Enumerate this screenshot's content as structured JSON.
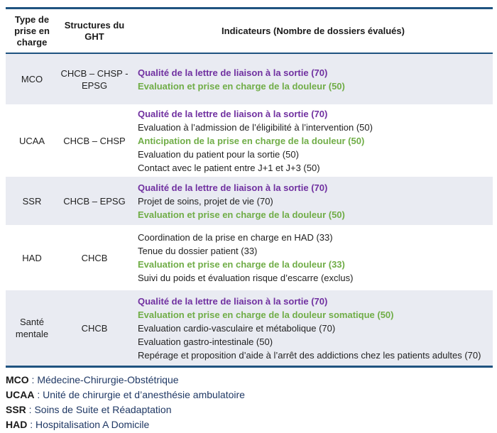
{
  "header": {
    "col_type": "Type de prise en charge",
    "col_structures": "Structures du GHT",
    "col_indicators": "Indicateurs (Nombre de dossiers évalués)"
  },
  "colors": {
    "border_navy": "#1F5380",
    "shaded_row": "#E9EBF2",
    "indicator_purple": "#7030A0",
    "indicator_green": "#70AD47",
    "legend_blue": "#1F3864"
  },
  "rows": [
    {
      "type": "MCO",
      "structures": "CHCB – CHSP - EPSG",
      "shaded": true,
      "indicators": [
        {
          "text": "Qualité de la lettre de liaison à la sortie (70)",
          "style": "purple"
        },
        {
          "text": "Evaluation et prise en charge de la douleur (50)",
          "style": "green"
        }
      ]
    },
    {
      "type": "UCAA",
      "structures": "CHCB – CHSP",
      "shaded": false,
      "indicators": [
        {
          "text": "Qualité de la lettre de liaison à la sortie (70)",
          "style": "purple"
        },
        {
          "text": "Evaluation à l’admission de l’éligibilité à l’intervention (50)",
          "style": "black"
        },
        {
          "text": "Anticipation de la prise en charge de la douleur (50)",
          "style": "green"
        },
        {
          "text": "Evaluation du patient pour la sortie (50)",
          "style": "black"
        },
        {
          "text": "Contact avec le patient entre J+1 et J+3 (50)",
          "style": "black"
        }
      ]
    },
    {
      "type": "SSR",
      "structures": "CHCB – EPSG",
      "shaded": true,
      "indicators": [
        {
          "text": "Qualité de la lettre de liaison à la sortie (70)",
          "style": "purple"
        },
        {
          "text": "Projet de soins, projet de vie (70)",
          "style": "black"
        },
        {
          "text": "Evaluation et prise en charge de la douleur (50)",
          "style": "green"
        }
      ]
    },
    {
      "type": "HAD",
      "structures": "CHCB",
      "shaded": false,
      "indicators": [
        {
          "text": "Coordination de la prise en charge en HAD (33)",
          "style": "black"
        },
        {
          "text": "Tenue du dossier patient (33)",
          "style": "black"
        },
        {
          "text": "Evaluation et prise en charge de la douleur (33)",
          "style": "green"
        },
        {
          "text": "Suivi du poids et évaluation risque d’escarre (exclus)",
          "style": "black"
        }
      ]
    },
    {
      "type": "Santé mentale",
      "structures": "CHCB",
      "shaded": true,
      "indicators": [
        {
          "text": "Qualité de la lettre de liaison à la sortie (70)",
          "style": "purple"
        },
        {
          "text": "Evaluation et prise en charge de la douleur somatique (50)",
          "style": "green"
        },
        {
          "text": "Evaluation cardio-vasculaire et métabolique (70)",
          "style": "black"
        },
        {
          "text": "Evaluation gastro-intestinale (50)",
          "style": "black"
        },
        {
          "text": "Repérage et proposition d’aide à l’arrêt des addictions chez les patients adultes (70)",
          "style": "black"
        }
      ]
    }
  ],
  "legend": [
    {
      "abbr": "MCO",
      "definition": "Médecine-Chirurgie-Obstétrique"
    },
    {
      "abbr": "UCAA",
      "definition": "Unité de chirurgie et d’anesthésie ambulatoire"
    },
    {
      "abbr": "SSR",
      "definition": "Soins de Suite et Réadaptation"
    },
    {
      "abbr": "HAD",
      "definition": "Hospitalisation A Domicile"
    }
  ]
}
